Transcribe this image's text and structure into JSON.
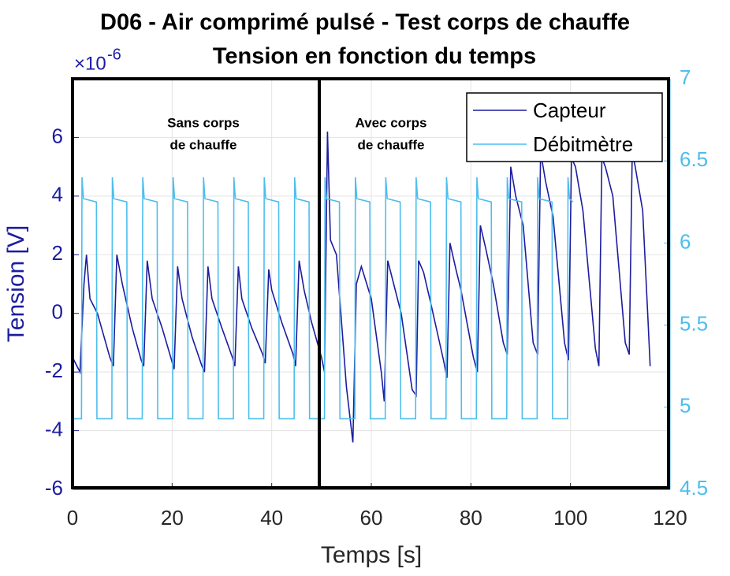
{
  "chart_data": {
    "type": "line",
    "title": "D06 - Air comprimé pulsé - Test corps de chauffe",
    "subtitle": "Tension en fonction du temps",
    "y_exponent": {
      "base": "×10",
      "power": "-6"
    },
    "x_label": "Temps [s]",
    "y_label": "Tension [V]",
    "xlim": [
      0,
      120
    ],
    "xticks": [
      0,
      20,
      40,
      60,
      80,
      100,
      120
    ],
    "ylim": [
      -6,
      8
    ],
    "yticks": [
      -6,
      -4,
      -2,
      0,
      2,
      4,
      6
    ],
    "y2lim": [
      4.5,
      7
    ],
    "y2ticks": [
      4.5,
      5,
      5.5,
      6,
      6.5,
      7
    ],
    "grid": true,
    "legend": "top-right",
    "annotations": [
      [
        "Sans corps",
        "de chauffe"
      ],
      [
        "Avec corps",
        "de chauffe"
      ]
    ],
    "series": [
      {
        "name": "Capteur",
        "color": "#1c1ca0",
        "axis": "y",
        "x": [
          0,
          1.5,
          2.3,
          2.8,
          3.5,
          5,
          7.5,
          8.2,
          8.9,
          10,
          12,
          13.8,
          14.3,
          15,
          16,
          18,
          19.9,
          20.4,
          21.1,
          22,
          24,
          26,
          26.5,
          27.2,
          28,
          30,
          32.1,
          32.6,
          33.3,
          34,
          36,
          38.2,
          38.7,
          39.4,
          40,
          42,
          44.3,
          44.8,
          45.5,
          46.5,
          48,
          50,
          50.6,
          51.2,
          51.8,
          53,
          55,
          56.3,
          57,
          58,
          60,
          62,
          62.6,
          63.3,
          64.5,
          66,
          68.2,
          69,
          69.5,
          70.5,
          72,
          74.5,
          75.2,
          75.8,
          77,
          78,
          80.5,
          81.3,
          81.9,
          83,
          84.5,
          86.5,
          87.3,
          88,
          89,
          90.5,
          92.5,
          93.4,
          94,
          95,
          96.5,
          98.8,
          99.6,
          100.2,
          101,
          102.5,
          105,
          105.7,
          106.3,
          107,
          108.5,
          111,
          111.8,
          112.4,
          113,
          114.5,
          115.5,
          116
        ],
        "values": [
          -1.5,
          -2.0,
          1.0,
          2.0,
          0.5,
          0,
          -1.5,
          -1.8,
          2.0,
          1.0,
          -0.5,
          -1.6,
          -1.8,
          1.8,
          0.5,
          -0.5,
          -1.6,
          -1.9,
          1.6,
          0.5,
          -0.8,
          -1.8,
          -2.0,
          1.6,
          0.5,
          -0.5,
          -1.5,
          -1.8,
          1.6,
          0.5,
          -0.5,
          -1.4,
          -1.7,
          1.5,
          0.8,
          -0.3,
          -1.4,
          -1.8,
          1.8,
          0.8,
          -0.3,
          -1.5,
          -2.0,
          6.2,
          2.5,
          2.0,
          -2.5,
          -4.4,
          1.0,
          1.6,
          0.5,
          -2.0,
          -3.0,
          1.8,
          1.0,
          0,
          -2.6,
          -2.8,
          1.8,
          1.4,
          0.3,
          -1.6,
          -2.2,
          2.4,
          1.5,
          0.8,
          -1.5,
          -2.0,
          3.0,
          2.2,
          1.0,
          -1.0,
          -1.4,
          5.0,
          4.0,
          3.0,
          -1.0,
          -1.4,
          5.5,
          4.5,
          3.3,
          -1.0,
          -1.6,
          5.3,
          5.0,
          3.5,
          -1.2,
          -1.8,
          5.3,
          5.0,
          4.0,
          -1.0,
          -1.4,
          5.5,
          5.0,
          3.5,
          0,
          -1.8
        ]
      },
      {
        "name": "Débitmètre",
        "color": "#4dbeee",
        "axis": "y2",
        "x": [
          0,
          1.8,
          1.9,
          2.2,
          4.8,
          4.9,
          7.9,
          8.0,
          8.3,
          10.9,
          11.0,
          14.0,
          14.1,
          14.4,
          17.0,
          17.1,
          20.1,
          20.2,
          20.5,
          23.1,
          23.2,
          26.2,
          26.3,
          26.6,
          29.2,
          29.3,
          32.3,
          32.4,
          32.7,
          35.3,
          35.4,
          38.4,
          38.5,
          38.8,
          41.4,
          41.5,
          44.5,
          44.6,
          44.9,
          47.5,
          47.6,
          50.6,
          50.7,
          51.0,
          53.6,
          53.7,
          56.7,
          56.8,
          57.1,
          59.7,
          59.8,
          62.8,
          62.9,
          63.2,
          65.8,
          65.9,
          68.9,
          69.0,
          69.3,
          71.9,
          72.0,
          75.0,
          75.1,
          75.4,
          78.0,
          78.1,
          81.1,
          81.2,
          81.5,
          84.1,
          84.2,
          87.2,
          87.3,
          87.6,
          90.2,
          90.3,
          93.3,
          93.4,
          93.7,
          96.3,
          96.4,
          99.4,
          99.5,
          99.8,
          100.5
        ],
        "values": [
          4.93,
          4.93,
          6.4,
          6.27,
          6.25,
          4.93,
          4.93,
          6.4,
          6.27,
          6.25,
          4.93,
          4.93,
          6.4,
          6.27,
          6.25,
          4.93,
          4.93,
          6.4,
          6.27,
          6.25,
          4.93,
          4.93,
          6.4,
          6.27,
          6.25,
          4.93,
          4.93,
          6.4,
          6.27,
          6.25,
          4.93,
          4.93,
          6.4,
          6.27,
          6.25,
          4.93,
          4.93,
          6.4,
          6.27,
          6.25,
          4.93,
          4.93,
          6.4,
          6.27,
          6.25,
          4.93,
          4.93,
          6.4,
          6.27,
          6.25,
          4.93,
          4.93,
          6.4,
          6.27,
          6.25,
          4.93,
          4.93,
          6.4,
          6.27,
          6.25,
          4.93,
          4.93,
          6.4,
          6.27,
          6.25,
          4.93,
          4.93,
          6.4,
          6.27,
          6.25,
          4.93,
          4.93,
          6.4,
          6.27,
          6.25,
          4.93,
          4.93,
          6.4,
          6.27,
          6.25,
          4.93,
          4.93,
          6.4,
          6.27,
          6.25
        ]
      }
    ]
  }
}
